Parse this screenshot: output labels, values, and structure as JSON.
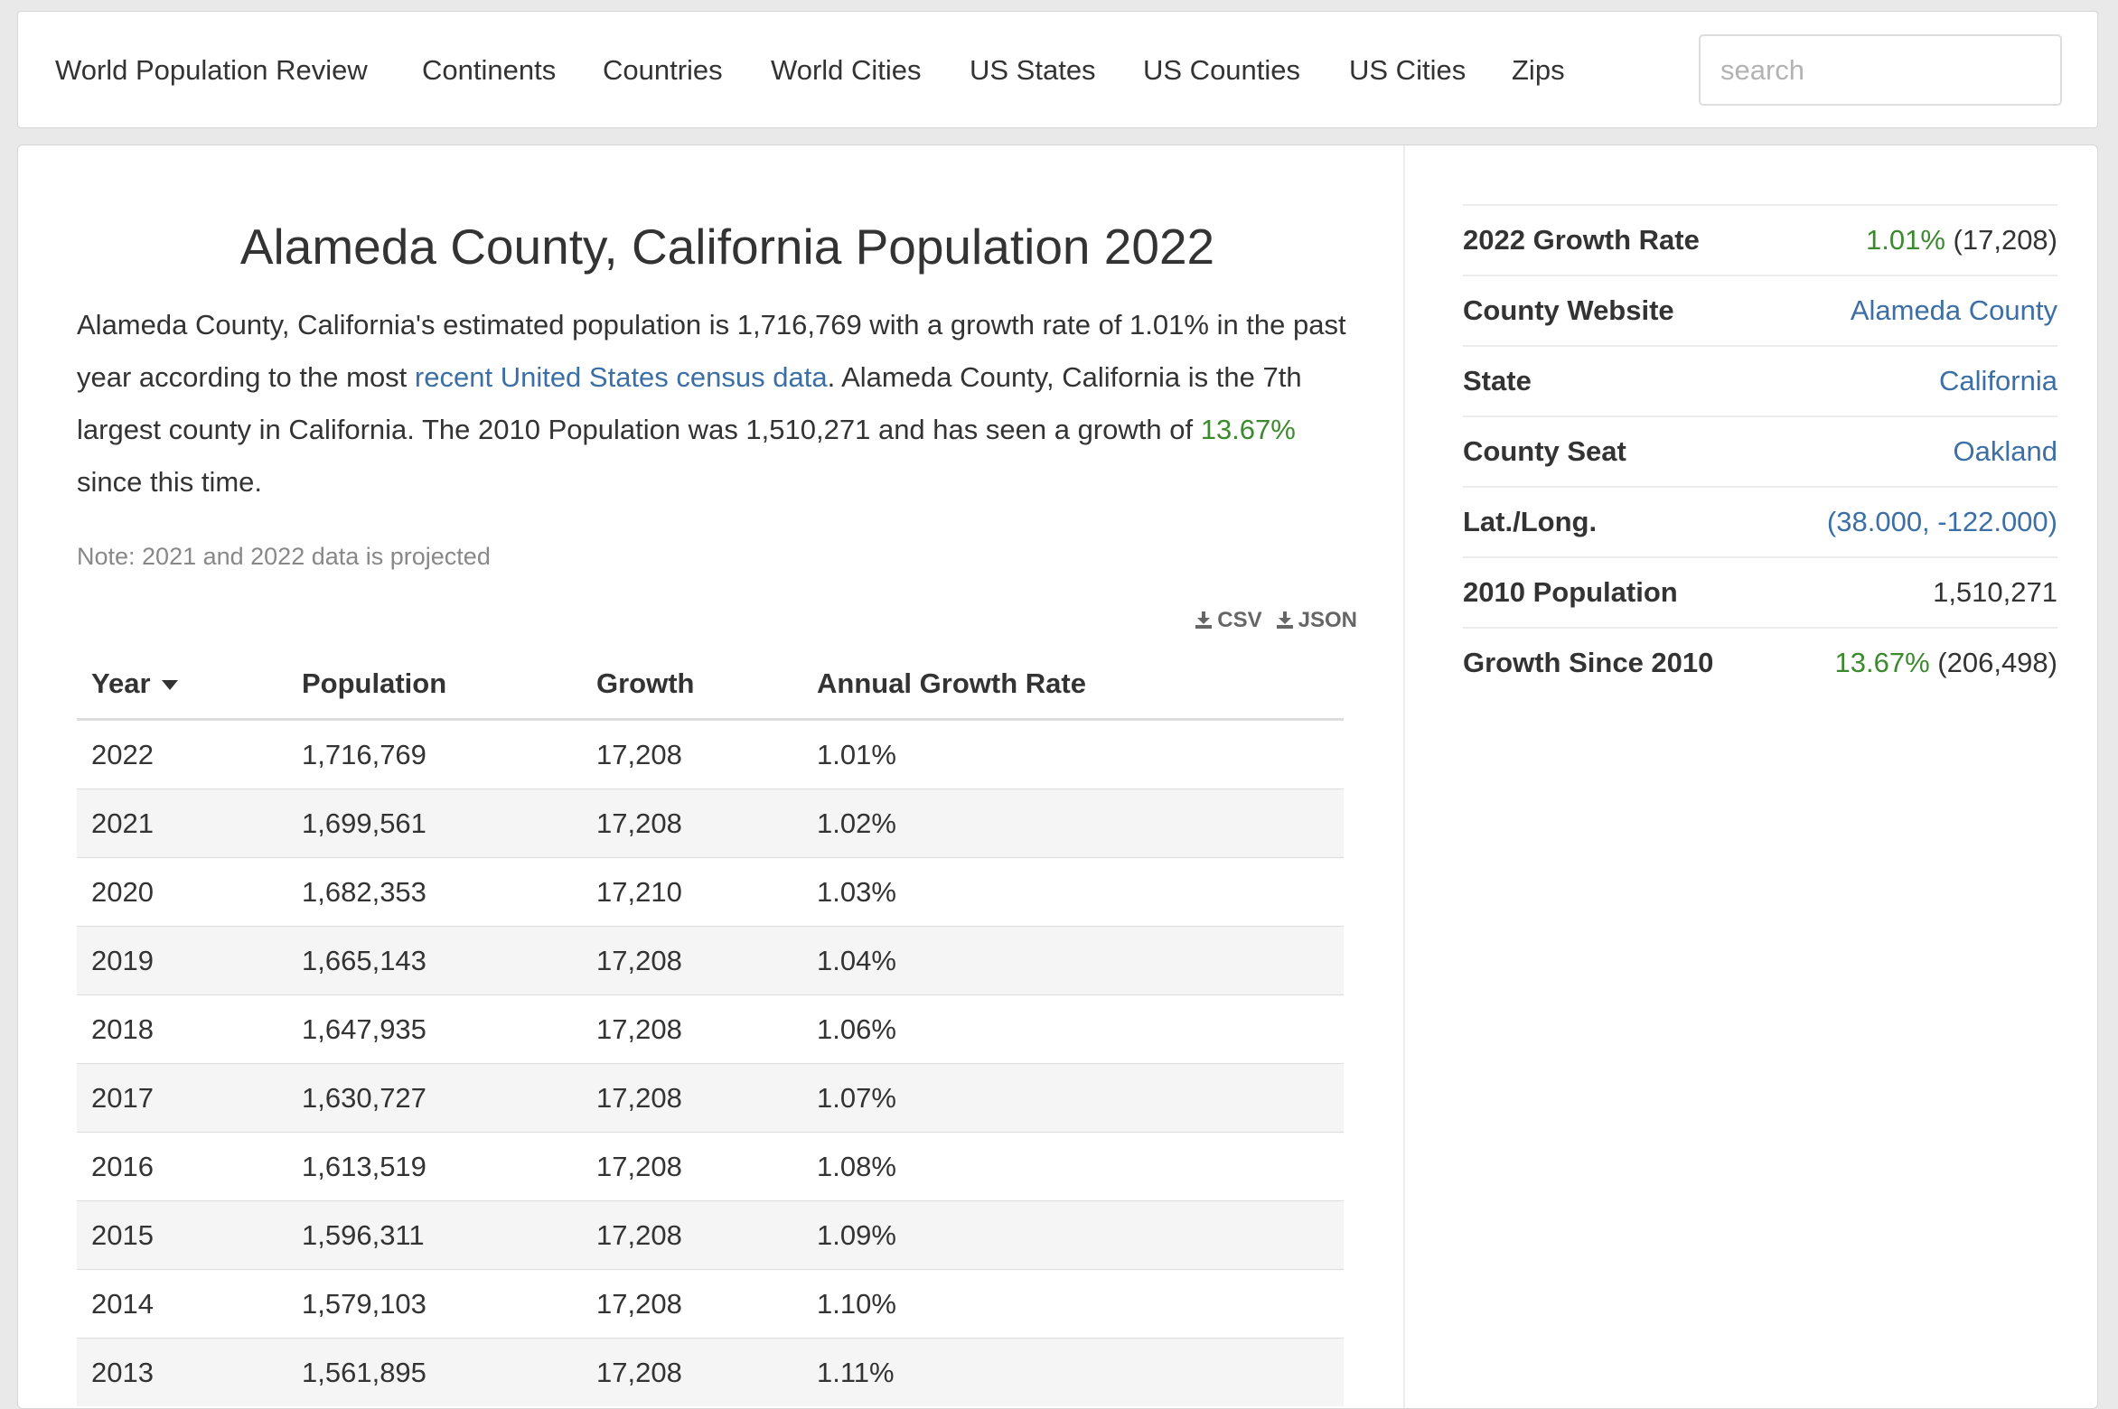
{
  "nav": {
    "items": [
      {
        "label": "World Population Review"
      },
      {
        "label": "Continents"
      },
      {
        "label": "Countries"
      },
      {
        "label": "World Cities"
      },
      {
        "label": "US States"
      },
      {
        "label": "US Counties"
      },
      {
        "label": "US Cities"
      },
      {
        "label": "Zips"
      }
    ],
    "search_placeholder": "search"
  },
  "main": {
    "title": "Alameda County, California Population 2022",
    "intro": {
      "part1": "Alameda County, California's estimated population is 1,716,769 with a growth rate of 1.01% in the past year according to the most ",
      "link": "recent United States census data",
      "part2": ". Alameda County, California is the 7th largest county in California. The 2010 Population was 1,510,271 and has seen a growth of ",
      "growth": "13.67%",
      "part3": " since this time."
    },
    "note": "Note: 2021 and 2022 data is projected",
    "exports": {
      "csv": "CSV",
      "json": "JSON"
    }
  },
  "table": {
    "headers": {
      "year": "Year",
      "population": "Population",
      "growth": "Growth",
      "rate": "Annual Growth Rate"
    },
    "rows": [
      {
        "year": "2022",
        "population": "1,716,769",
        "growth": "17,208",
        "rate": "1.01%"
      },
      {
        "year": "2021",
        "population": "1,699,561",
        "growth": "17,208",
        "rate": "1.02%"
      },
      {
        "year": "2020",
        "population": "1,682,353",
        "growth": "17,210",
        "rate": "1.03%"
      },
      {
        "year": "2019",
        "population": "1,665,143",
        "growth": "17,208",
        "rate": "1.04%"
      },
      {
        "year": "2018",
        "population": "1,647,935",
        "growth": "17,208",
        "rate": "1.06%"
      },
      {
        "year": "2017",
        "population": "1,630,727",
        "growth": "17,208",
        "rate": "1.07%"
      },
      {
        "year": "2016",
        "population": "1,613,519",
        "growth": "17,208",
        "rate": "1.08%"
      },
      {
        "year": "2015",
        "population": "1,596,311",
        "growth": "17,208",
        "rate": "1.09%"
      },
      {
        "year": "2014",
        "population": "1,579,103",
        "growth": "17,208",
        "rate": "1.10%"
      },
      {
        "year": "2013",
        "population": "1,561,895",
        "growth": "17,208",
        "rate": "1.11%"
      }
    ]
  },
  "sidebar": {
    "growth_rate": {
      "label": "2022 Growth Rate",
      "pct": "1.01%",
      "abs": "(17,208)"
    },
    "website": {
      "label": "County Website",
      "value": "Alameda County"
    },
    "state": {
      "label": "State",
      "value": "California"
    },
    "seat": {
      "label": "County Seat",
      "value": "Oakland"
    },
    "latlong": {
      "label": "Lat./Long.",
      "value": "(38.000, -122.000)"
    },
    "pop2010": {
      "label": "2010 Population",
      "value": "1,510,271"
    },
    "growth_since": {
      "label": "Growth Since 2010",
      "pct": "13.67%",
      "abs": "(206,498)"
    }
  },
  "colors": {
    "link": "#3b6fa6",
    "positive": "#3c8a2e"
  }
}
